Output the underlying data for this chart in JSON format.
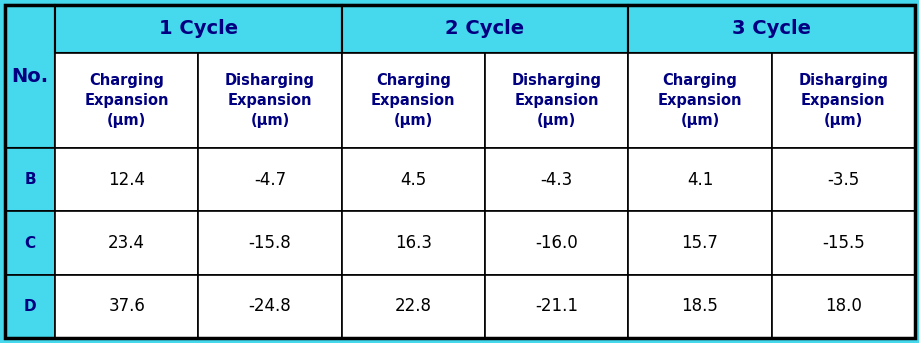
{
  "cycle_headers": [
    "1 Cycle",
    "2 Cycle",
    "3 Cycle"
  ],
  "sub_headers": [
    "Charging\nExpansion\n(μm)",
    "Disharging\nExpansion\n(μm)",
    "Charging\nExpansion\n(μm)",
    "Disharging\nExpansion\n(μm)",
    "Charging\nExpansion\n(μm)",
    "Disharging\nExpansion\n(μm)"
  ],
  "row_labels": [
    "B",
    "C",
    "D"
  ],
  "data": [
    [
      "12.4",
      "-4.7",
      "4.5",
      "-4.3",
      "4.1",
      "-3.5"
    ],
    [
      "23.4",
      "-15.8",
      "16.3",
      "-16.0",
      "15.7",
      "-15.5"
    ],
    [
      "37.6",
      "-24.8",
      "22.8",
      "-21.1",
      "18.5",
      "18.0"
    ]
  ],
  "cyan_bg": "#46D8EC",
  "white_bg": "#FFFFFF",
  "header_text_color": "#000080",
  "data_text_color": "#000000",
  "border_color": "#000000",
  "fig_bg": "#46D8EC"
}
